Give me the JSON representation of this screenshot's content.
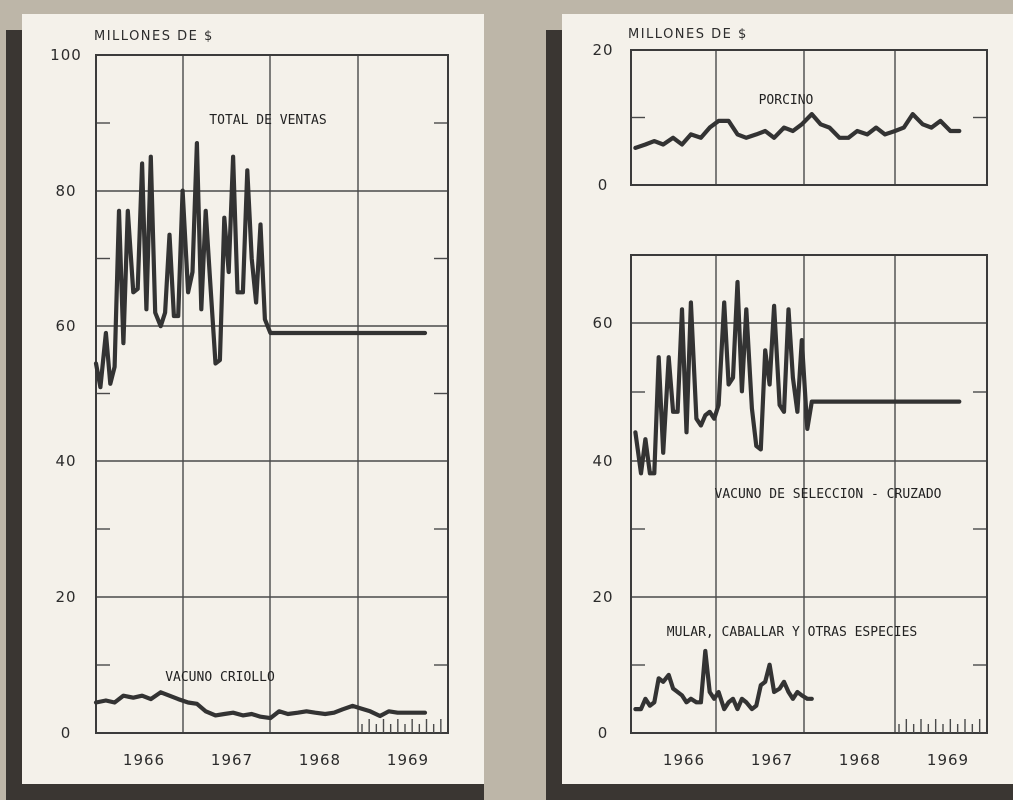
{
  "chart_data": [
    {
      "type": "line",
      "unit_label": "MILLONES DE $",
      "y_ticks": [
        "100",
        "80",
        "60",
        "40",
        "20",
        "0"
      ],
      "ylim": [
        0,
        100
      ],
      "x_ticks": [
        "1966",
        "1967",
        "1968",
        "1969"
      ],
      "xlim": [
        1965.79,
        1969.0
      ],
      "grid": true,
      "series": [
        {
          "name": "TOTAL DE VENTAS",
          "x": [
            1965.79,
            1965.83,
            1965.88,
            1965.92,
            1965.96,
            1966.0,
            1966.04,
            1966.08,
            1966.13,
            1966.17,
            1966.21,
            1966.25,
            1966.29,
            1966.33,
            1966.38,
            1966.42,
            1966.46,
            1966.5,
            1966.54,
            1966.58,
            1966.63,
            1966.67,
            1966.71,
            1966.75,
            1966.79,
            1966.83,
            1966.88,
            1966.92,
            1966.96,
            1967.0,
            1967.04,
            1967.08,
            1967.13,
            1967.17,
            1967.21,
            1967.25,
            1967.29,
            1967.33,
            1967.38,
            1967.42,
            1967.46,
            1967.5,
            1967.54,
            1967.58,
            1967.63,
            1967.67,
            1967.71,
            1967.75,
            1967.79,
            1967.83,
            1967.88,
            1967.92,
            1967.96,
            1968.0,
            1968.04,
            1968.08,
            1968.13,
            1968.17,
            1968.21,
            1968.25,
            1968.29,
            1968.33,
            1968.38,
            1968.42,
            1968.46,
            1968.5,
            1968.54,
            1968.58,
            1968.63,
            1968.67,
            1968.71,
            1968.75,
            1968.79
          ],
          "y": [
            54.5,
            51,
            59,
            51.5,
            54,
            77,
            57.5,
            77,
            65,
            65.5,
            84,
            62.5,
            85,
            62,
            60,
            62,
            73.5,
            61.5,
            61.5,
            80,
            65,
            68,
            87,
            62.5,
            77,
            67,
            54.5,
            55,
            76,
            68,
            85,
            65,
            65,
            83,
            70,
            63.5,
            75,
            61,
            59,
            59,
            59,
            59,
            59,
            59,
            59,
            59,
            59,
            59,
            59,
            59,
            59,
            59,
            59,
            59,
            59,
            59,
            59,
            59,
            59,
            59,
            59,
            59,
            59,
            59,
            59,
            59,
            59,
            59,
            59,
            59,
            59,
            59,
            59
          ]
        },
        {
          "name": "VACUNO CRIOLLO",
          "x": [
            1965.79,
            1965.88,
            1965.96,
            1966.04,
            1966.13,
            1966.21,
            1966.29,
            1966.38,
            1966.46,
            1966.54,
            1966.63,
            1966.71,
            1966.79,
            1966.88,
            1966.96,
            1967.04,
            1967.13,
            1967.21,
            1967.29,
            1967.38,
            1967.46,
            1967.54,
            1967.63,
            1967.71,
            1967.79,
            1967.88,
            1967.96,
            1968.04,
            1968.13,
            1968.21,
            1968.29,
            1968.38,
            1968.46,
            1968.54,
            1968.63,
            1968.71,
            1968.79
          ],
          "y": [
            4.5,
            4.8,
            4.5,
            5.5,
            5.2,
            5.5,
            5.0,
            6.0,
            5.5,
            5.0,
            4.5,
            4.3,
            3.2,
            2.6,
            2.8,
            3.0,
            2.6,
            2.8,
            2.4,
            2.2,
            3.2,
            2.8,
            3.0,
            3.2,
            3.0,
            2.8,
            3.0,
            3.5,
            4.0,
            3.6,
            3.2,
            2.5,
            3.2,
            3.0,
            3.0,
            3.0,
            3.0
          ]
        }
      ]
    },
    {
      "type": "line",
      "unit_label": "MILLONES DE $",
      "y_ticks": [
        "20",
        "0"
      ],
      "ylim": [
        0,
        20
      ],
      "x_ticks": [
        "1966",
        "1967",
        "1968",
        "1969"
      ],
      "xlim": [
        1965.79,
        1969.0
      ],
      "grid": true,
      "series": [
        {
          "name": "PORCINO",
          "x": [
            1965.83,
            1965.92,
            1966.0,
            1966.08,
            1966.17,
            1966.25,
            1966.33,
            1966.42,
            1966.5,
            1966.58,
            1966.67,
            1966.75,
            1966.83,
            1966.92,
            1967.0,
            1967.08,
            1967.17,
            1967.25,
            1967.33,
            1967.42,
            1967.5,
            1967.58,
            1967.67,
            1967.75,
            1967.83,
            1967.92,
            1968.0,
            1968.08,
            1968.17,
            1968.25,
            1968.33,
            1968.42,
            1968.5,
            1968.58,
            1968.67,
            1968.75
          ],
          "y": [
            5.5,
            6.0,
            6.5,
            6.0,
            7.0,
            6.0,
            7.5,
            7.0,
            8.5,
            9.5,
            9.5,
            7.5,
            7.0,
            7.5,
            8.0,
            7.0,
            8.5,
            8.0,
            9.0,
            10.5,
            9.0,
            8.5,
            7.0,
            7.0,
            8.0,
            7.5,
            8.5,
            7.5,
            8.0,
            8.5,
            10.5,
            9.0,
            8.5,
            9.5,
            8.0,
            8.0
          ]
        }
      ]
    },
    {
      "type": "line",
      "unit_label": "",
      "y_ticks": [
        "60",
        "40",
        "20",
        "0"
      ],
      "ylim": [
        0,
        70
      ],
      "x_ticks": [
        "1966",
        "1967",
        "1968",
        "1969"
      ],
      "xlim": [
        1965.79,
        1969.0
      ],
      "grid": true,
      "series": [
        {
          "name": "VACUNO DE SELECCION - CRUZADO",
          "x": [
            1965.83,
            1965.88,
            1965.92,
            1965.96,
            1966.0,
            1966.04,
            1966.08,
            1966.13,
            1966.17,
            1966.21,
            1966.25,
            1966.29,
            1966.33,
            1966.38,
            1966.42,
            1966.46,
            1966.5,
            1966.54,
            1966.58,
            1966.63,
            1966.67,
            1966.71,
            1966.75,
            1966.79,
            1966.83,
            1966.88,
            1966.92,
            1966.96,
            1967.0,
            1967.04,
            1967.08,
            1967.13,
            1967.17,
            1967.21,
            1967.25,
            1967.29,
            1967.33,
            1967.38,
            1967.42,
            1967.46,
            1967.5,
            1967.54,
            1967.58,
            1967.63,
            1967.67,
            1967.71,
            1967.75,
            1967.79,
            1967.83,
            1967.88,
            1967.92,
            1967.96,
            1968.0,
            1968.04,
            1968.08,
            1968.13,
            1968.17,
            1968.21,
            1968.25,
            1968.29,
            1968.33,
            1968.38,
            1968.42,
            1968.46,
            1968.5,
            1968.54,
            1968.58,
            1968.63,
            1968.67,
            1968.71,
            1968.75
          ],
          "y": [
            44,
            38,
            43,
            38,
            38,
            55,
            41,
            55,
            47,
            47,
            62,
            44,
            63,
            46,
            45,
            46.5,
            47,
            46,
            48,
            63,
            51,
            52,
            66,
            50,
            62,
            47.5,
            42,
            41.5,
            56,
            51,
            62.5,
            48,
            47,
            62,
            52,
            47,
            57.5,
            44.5,
            48.5,
            48.5,
            48.5,
            48.5,
            48.5,
            48.5,
            48.5,
            48.5,
            48.5,
            48.5,
            48.5,
            48.5,
            48.5,
            48.5,
            48.5,
            48.5,
            48.5,
            48.5,
            48.5,
            48.5,
            48.5,
            48.5,
            48.5,
            48.5,
            48.5,
            48.5,
            48.5,
            48.5,
            48.5,
            48.5,
            48.5,
            48.5,
            48.5
          ]
        },
        {
          "name": "MULAR, CABALLAR Y OTRAS ESPECIES",
          "x": [
            1965.83,
            1965.88,
            1965.92,
            1965.96,
            1966.0,
            1966.04,
            1966.08,
            1966.13,
            1966.17,
            1966.21,
            1966.25,
            1966.29,
            1966.33,
            1966.38,
            1966.42,
            1966.46,
            1966.5,
            1966.54,
            1966.58,
            1966.63,
            1966.67,
            1966.71,
            1966.75,
            1966.79,
            1966.83,
            1966.88,
            1966.92,
            1966.96,
            1967.0,
            1967.04,
            1967.08,
            1967.13,
            1967.17,
            1967.21,
            1967.25,
            1967.29,
            1967.33,
            1967.38,
            1967.42
          ],
          "y": [
            3.5,
            3.5,
            5,
            4,
            4.5,
            8,
            7.5,
            8.5,
            6.5,
            6,
            5.5,
            4.5,
            5,
            4.5,
            4.5,
            12,
            6,
            5,
            6,
            3.5,
            4.5,
            5,
            3.5,
            5,
            4.5,
            3.5,
            4,
            7,
            7.5,
            10,
            6,
            6.5,
            7.5,
            6,
            5,
            6,
            5.5,
            5,
            5
          ]
        }
      ]
    }
  ]
}
